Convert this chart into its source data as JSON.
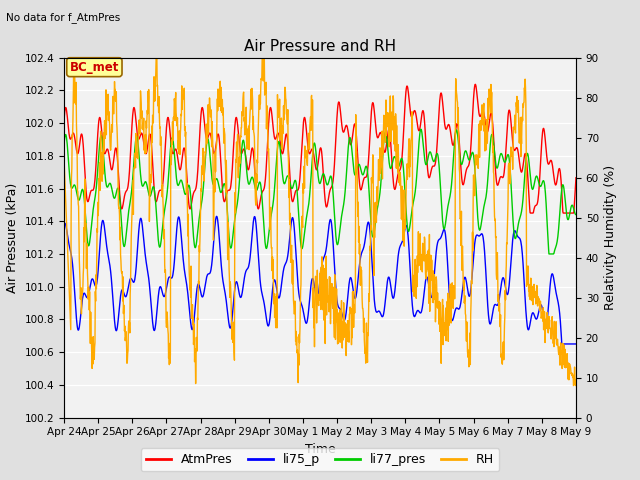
{
  "title": "Air Pressure and RH",
  "subtitle": "No data for f_AtmPres",
  "xlabel": "Time",
  "ylabel_left": "Air Pressure (kPa)",
  "ylabel_right": "Relativity Humidity (%)",
  "ylim_left": [
    100.2,
    102.4
  ],
  "ylim_right": [
    0,
    90
  ],
  "yticks_left": [
    100.2,
    100.4,
    100.6,
    100.8,
    101.0,
    101.2,
    101.4,
    101.6,
    101.8,
    102.0,
    102.2,
    102.4
  ],
  "yticks_right": [
    0,
    10,
    20,
    30,
    40,
    50,
    60,
    70,
    80,
    90
  ],
  "xtick_labels": [
    "Apr 24",
    "Apr 25",
    "Apr 26",
    "Apr 27",
    "Apr 28",
    "Apr 29",
    "Apr 30",
    "May 1",
    "May 2",
    "May 3",
    "May 4",
    "May 5",
    "May 6",
    "May 7",
    "May 8",
    "May 9"
  ],
  "legend_labels": [
    "AtmPres",
    "li75_p",
    "li77_pres",
    "RH"
  ],
  "legend_colors": [
    "#ff0000",
    "#0000ff",
    "#00cc00",
    "#ffaa00"
  ],
  "bc_met_box_color": "#ffff99",
  "bc_met_text_color": "#cc0000",
  "bg_color": "#e0e0e0",
  "plot_bg_color": "#f2f2f2",
  "grid_color": "#ffffff",
  "series_linewidth": 1.0,
  "title_fontsize": 11,
  "tick_fontsize": 7.5,
  "label_fontsize": 9
}
